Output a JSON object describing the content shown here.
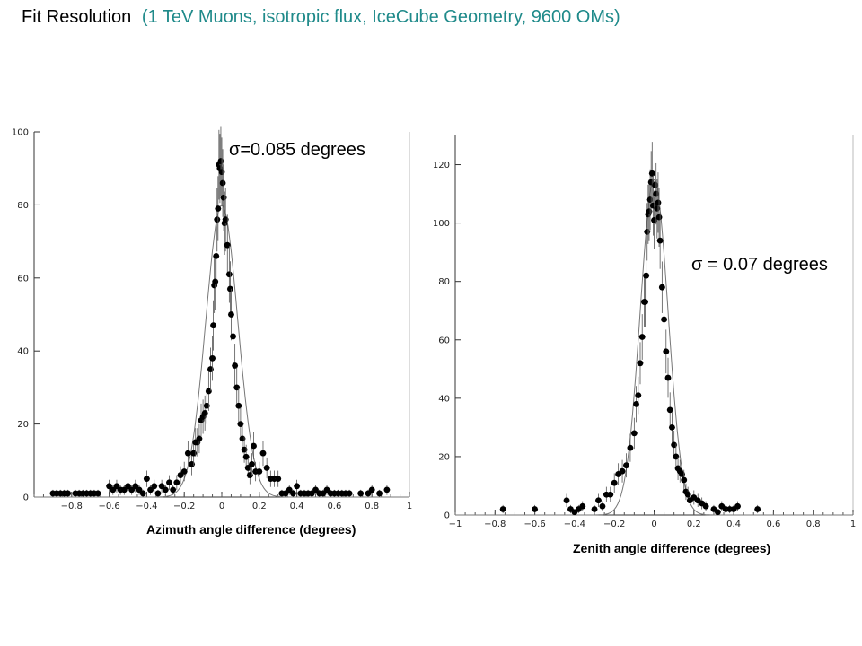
{
  "title": {
    "main": "Fit Resolution",
    "sub": "(1 TeV Muons, isotropic flux, IceCube Geometry, 9600 OMs)"
  },
  "colors": {
    "subtitle": "#1f8a8a",
    "marker": "#000000"
  },
  "chart_data": [
    {
      "type": "scatter",
      "title": "",
      "xlabel": "Azimuth angle difference (degrees)",
      "ylabel": "",
      "annotation": "σ=0.085 degrees",
      "xlim": [
        -1,
        1
      ],
      "ylim": [
        0,
        100
      ],
      "xticks": [
        -0.8,
        -0.6,
        -0.4,
        -0.2,
        0,
        0.2,
        0.4,
        0.6,
        0.8,
        1
      ],
      "yticks": [
        0,
        20,
        40,
        60,
        80,
        100
      ],
      "grid": false,
      "fit_curve": {
        "shape": "gaussian",
        "sigma": 0.085,
        "peak": 80
      },
      "points": [
        [
          -0.9,
          1
        ],
        [
          -0.88,
          1
        ],
        [
          -0.86,
          1
        ],
        [
          -0.84,
          1
        ],
        [
          -0.82,
          1
        ],
        [
          -0.78,
          1
        ],
        [
          -0.76,
          1
        ],
        [
          -0.74,
          1
        ],
        [
          -0.72,
          1
        ],
        [
          -0.7,
          1
        ],
        [
          -0.68,
          1
        ],
        [
          -0.66,
          1
        ],
        [
          -0.6,
          3
        ],
        [
          -0.58,
          2
        ],
        [
          -0.56,
          3
        ],
        [
          -0.54,
          2
        ],
        [
          -0.52,
          2
        ],
        [
          -0.5,
          3
        ],
        [
          -0.48,
          2
        ],
        [
          -0.46,
          3
        ],
        [
          -0.44,
          2
        ],
        [
          -0.42,
          1
        ],
        [
          -0.4,
          5
        ],
        [
          -0.38,
          2
        ],
        [
          -0.36,
          3
        ],
        [
          -0.34,
          1
        ],
        [
          -0.32,
          3
        ],
        [
          -0.3,
          2
        ],
        [
          -0.28,
          4
        ],
        [
          -0.26,
          2
        ],
        [
          -0.24,
          4
        ],
        [
          -0.22,
          6
        ],
        [
          -0.2,
          7
        ],
        [
          -0.18,
          12
        ],
        [
          -0.16,
          9
        ],
        [
          -0.15,
          12
        ],
        [
          -0.14,
          15
        ],
        [
          -0.13,
          15
        ],
        [
          -0.12,
          16
        ],
        [
          -0.11,
          21
        ],
        [
          -0.1,
          22
        ],
        [
          -0.09,
          23
        ],
        [
          -0.08,
          25
        ],
        [
          -0.07,
          29
        ],
        [
          -0.06,
          35
        ],
        [
          -0.05,
          38
        ],
        [
          -0.045,
          47
        ],
        [
          -0.04,
          58
        ],
        [
          -0.035,
          59
        ],
        [
          -0.03,
          66
        ],
        [
          -0.025,
          76
        ],
        [
          -0.02,
          79
        ],
        [
          -0.015,
          91
        ],
        [
          -0.01,
          90
        ],
        [
          -0.005,
          92
        ],
        [
          0,
          89
        ],
        [
          0.005,
          86
        ],
        [
          0.01,
          82
        ],
        [
          0.015,
          75
        ],
        [
          0.02,
          76
        ],
        [
          0.03,
          69
        ],
        [
          0.04,
          61
        ],
        [
          0.045,
          57
        ],
        [
          0.05,
          50
        ],
        [
          0.06,
          44
        ],
        [
          0.07,
          36
        ],
        [
          0.08,
          30
        ],
        [
          0.09,
          25
        ],
        [
          0.1,
          20
        ],
        [
          0.11,
          16
        ],
        [
          0.12,
          13
        ],
        [
          0.13,
          11
        ],
        [
          0.14,
          8
        ],
        [
          0.15,
          6
        ],
        [
          0.16,
          9
        ],
        [
          0.17,
          14
        ],
        [
          0.18,
          7
        ],
        [
          0.2,
          7
        ],
        [
          0.22,
          12
        ],
        [
          0.24,
          8
        ],
        [
          0.26,
          5
        ],
        [
          0.28,
          5
        ],
        [
          0.3,
          5
        ],
        [
          0.32,
          1
        ],
        [
          0.34,
          1
        ],
        [
          0.36,
          2
        ],
        [
          0.38,
          1
        ],
        [
          0.4,
          3
        ],
        [
          0.42,
          1
        ],
        [
          0.44,
          1
        ],
        [
          0.46,
          1
        ],
        [
          0.48,
          1
        ],
        [
          0.5,
          2
        ],
        [
          0.52,
          1
        ],
        [
          0.54,
          1
        ],
        [
          0.56,
          2
        ],
        [
          0.58,
          1
        ],
        [
          0.6,
          1
        ],
        [
          0.62,
          1
        ],
        [
          0.64,
          1
        ],
        [
          0.66,
          1
        ],
        [
          0.68,
          1
        ],
        [
          0.74,
          1
        ],
        [
          0.78,
          1
        ],
        [
          0.8,
          2
        ],
        [
          0.84,
          1
        ],
        [
          0.88,
          2
        ]
      ]
    },
    {
      "type": "scatter",
      "title": "",
      "xlabel": "Zenith angle difference (degrees)",
      "ylabel": "",
      "annotation": "σ = 0.07 degrees",
      "xlim": [
        -1,
        1
      ],
      "ylim": [
        0,
        130
      ],
      "xticks": [
        -1,
        -0.8,
        -0.6,
        -0.4,
        -0.2,
        0,
        0.2,
        0.4,
        0.6,
        0.8,
        1
      ],
      "yticks": [
        0,
        20,
        40,
        60,
        80,
        100,
        120
      ],
      "grid": false,
      "fit_curve": {
        "shape": "gaussian",
        "sigma": 0.07,
        "peak": 115
      },
      "points": [
        [
          -0.76,
          2
        ],
        [
          -0.6,
          2
        ],
        [
          -0.44,
          5
        ],
        [
          -0.42,
          2
        ],
        [
          -0.4,
          1
        ],
        [
          -0.38,
          2
        ],
        [
          -0.36,
          3
        ],
        [
          -0.3,
          2
        ],
        [
          -0.28,
          5
        ],
        [
          -0.26,
          3
        ],
        [
          -0.24,
          7
        ],
        [
          -0.22,
          7
        ],
        [
          -0.2,
          11
        ],
        [
          -0.18,
          14
        ],
        [
          -0.16,
          15
        ],
        [
          -0.14,
          17
        ],
        [
          -0.12,
          23
        ],
        [
          -0.1,
          28
        ],
        [
          -0.09,
          38
        ],
        [
          -0.08,
          41
        ],
        [
          -0.07,
          52
        ],
        [
          -0.06,
          61
        ],
        [
          -0.05,
          73
        ],
        [
          -0.045,
          73
        ],
        [
          -0.04,
          82
        ],
        [
          -0.035,
          97
        ],
        [
          -0.03,
          103
        ],
        [
          -0.025,
          104
        ],
        [
          -0.02,
          108
        ],
        [
          -0.015,
          114
        ],
        [
          -0.01,
          117
        ],
        [
          -0.005,
          106
        ],
        [
          0,
          101
        ],
        [
          0.005,
          113
        ],
        [
          0.01,
          110
        ],
        [
          0.015,
          105
        ],
        [
          0.02,
          107
        ],
        [
          0.025,
          102
        ],
        [
          0.03,
          94
        ],
        [
          0.04,
          78
        ],
        [
          0.05,
          67
        ],
        [
          0.06,
          56
        ],
        [
          0.07,
          47
        ],
        [
          0.08,
          36
        ],
        [
          0.09,
          30
        ],
        [
          0.1,
          24
        ],
        [
          0.11,
          20
        ],
        [
          0.12,
          16
        ],
        [
          0.13,
          15
        ],
        [
          0.14,
          14
        ],
        [
          0.15,
          12
        ],
        [
          0.16,
          8
        ],
        [
          0.17,
          7
        ],
        [
          0.18,
          5
        ],
        [
          0.2,
          6
        ],
        [
          0.22,
          5
        ],
        [
          0.24,
          4
        ],
        [
          0.26,
          3
        ],
        [
          0.3,
          2
        ],
        [
          0.32,
          1
        ],
        [
          0.34,
          3
        ],
        [
          0.36,
          2
        ],
        [
          0.38,
          2
        ],
        [
          0.4,
          2
        ],
        [
          0.42,
          3
        ],
        [
          0.52,
          2
        ]
      ]
    }
  ]
}
